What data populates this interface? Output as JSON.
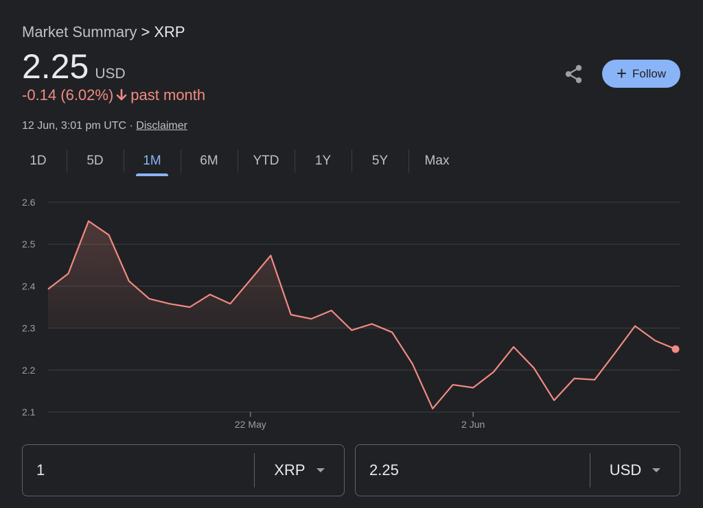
{
  "breadcrumb": {
    "parent": "Market Summary",
    "separator": ">",
    "current": "XRP"
  },
  "price": {
    "value": "2.25",
    "currency": "USD"
  },
  "change": {
    "text": "-0.14 (6.02%)",
    "period": "past month",
    "color": "#f28b82"
  },
  "timestamp": {
    "text": "12 Jun, 3:01 pm UTC ·",
    "disclaimer": "Disclaimer"
  },
  "actions": {
    "share_icon": "share-icon",
    "follow_label": "Follow",
    "follow_color": "#8ab4f8"
  },
  "tabs": [
    {
      "label": "1D"
    },
    {
      "label": "5D"
    },
    {
      "label": "1M",
      "active": true
    },
    {
      "label": "6M"
    },
    {
      "label": "YTD"
    },
    {
      "label": "1Y"
    },
    {
      "label": "5Y"
    },
    {
      "label": "Max"
    }
  ],
  "chart_data": {
    "type": "area",
    "y_ticks": [
      "2.6",
      "2.5",
      "2.4",
      "2.3",
      "2.2",
      "2.1"
    ],
    "ylim": [
      2.1,
      2.6
    ],
    "x_ticks": [
      {
        "label": "22 May",
        "index": 10
      },
      {
        "label": "2 Jun",
        "index": 21
      }
    ],
    "baseline": 2.3,
    "line_color": "#f28b82",
    "values": [
      2.393,
      2.43,
      2.555,
      2.522,
      2.412,
      2.37,
      2.358,
      2.35,
      2.38,
      2.358,
      2.415,
      2.473,
      2.332,
      2.322,
      2.342,
      2.295,
      2.31,
      2.29,
      2.215,
      2.108,
      2.165,
      2.158,
      2.195,
      2.255,
      2.205,
      2.128,
      2.18,
      2.177,
      2.24,
      2.305,
      2.27,
      2.25
    ],
    "grid": true
  },
  "converter": {
    "from": {
      "value": "1",
      "unit": "XRP"
    },
    "to": {
      "value": "2.25",
      "unit": "USD"
    }
  }
}
